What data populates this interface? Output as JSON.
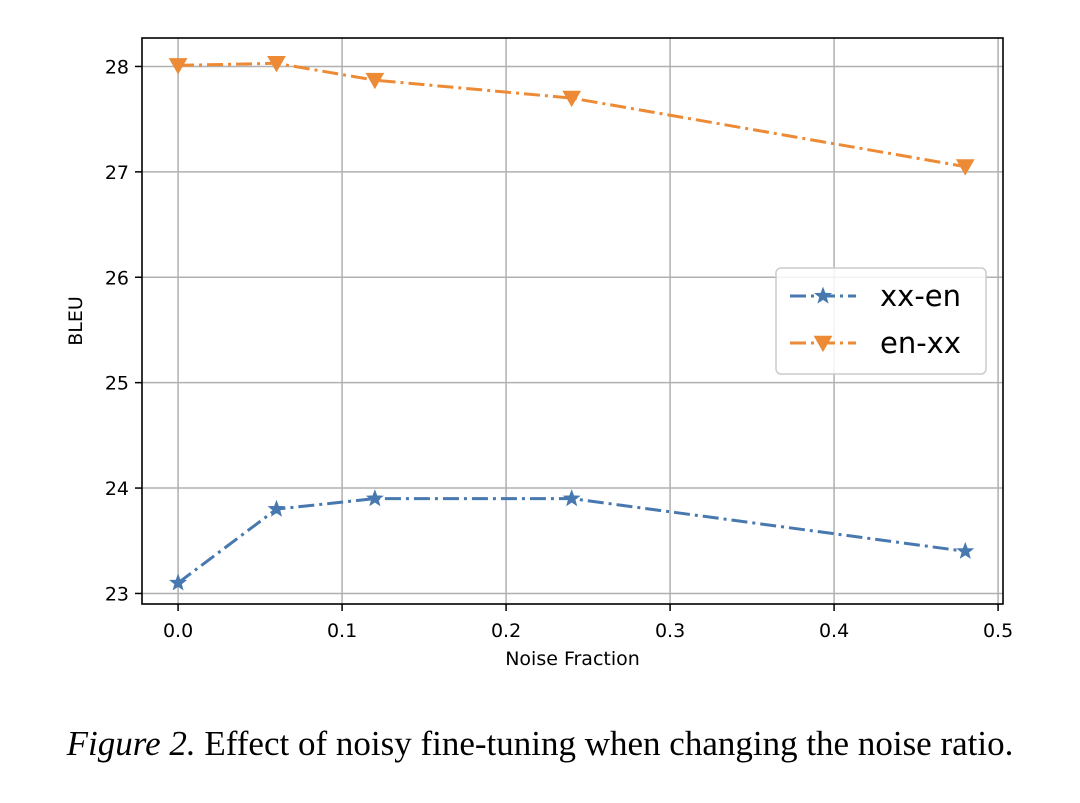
{
  "chart_data": {
    "type": "line",
    "title": "",
    "xlabel": "Noise Fraction",
    "ylabel": "BLEU",
    "xlim": [
      -0.022,
      0.503
    ],
    "ylim": [
      22.9,
      28.27
    ],
    "xticks": [
      0.0,
      0.1,
      0.2,
      0.3,
      0.4,
      0.5
    ],
    "xtick_labels": [
      "0.0",
      "0.1",
      "0.2",
      "0.3",
      "0.4",
      "0.5"
    ],
    "yticks": [
      23,
      24,
      25,
      26,
      27,
      28
    ],
    "ytick_labels": [
      "23",
      "24",
      "25",
      "26",
      "27",
      "28"
    ],
    "grid": true,
    "legend_position": "center-right",
    "series": [
      {
        "name": "xx-en",
        "color": "#4878b0",
        "marker": "star",
        "linestyle": "dashdot",
        "x": [
          0.0,
          0.06,
          0.12,
          0.24,
          0.48
        ],
        "y": [
          23.1,
          23.8,
          23.9,
          23.9,
          23.4
        ]
      },
      {
        "name": "en-xx",
        "color": "#ed8a35",
        "marker": "triangle-down",
        "linestyle": "dashdot",
        "x": [
          0.0,
          0.06,
          0.12,
          0.24,
          0.48
        ],
        "y": [
          28.01,
          28.03,
          27.87,
          27.7,
          27.05
        ]
      }
    ]
  },
  "caption": {
    "label": "Figure 2.",
    "text": "Effect of noisy fine-tuning when changing the noise ratio."
  }
}
